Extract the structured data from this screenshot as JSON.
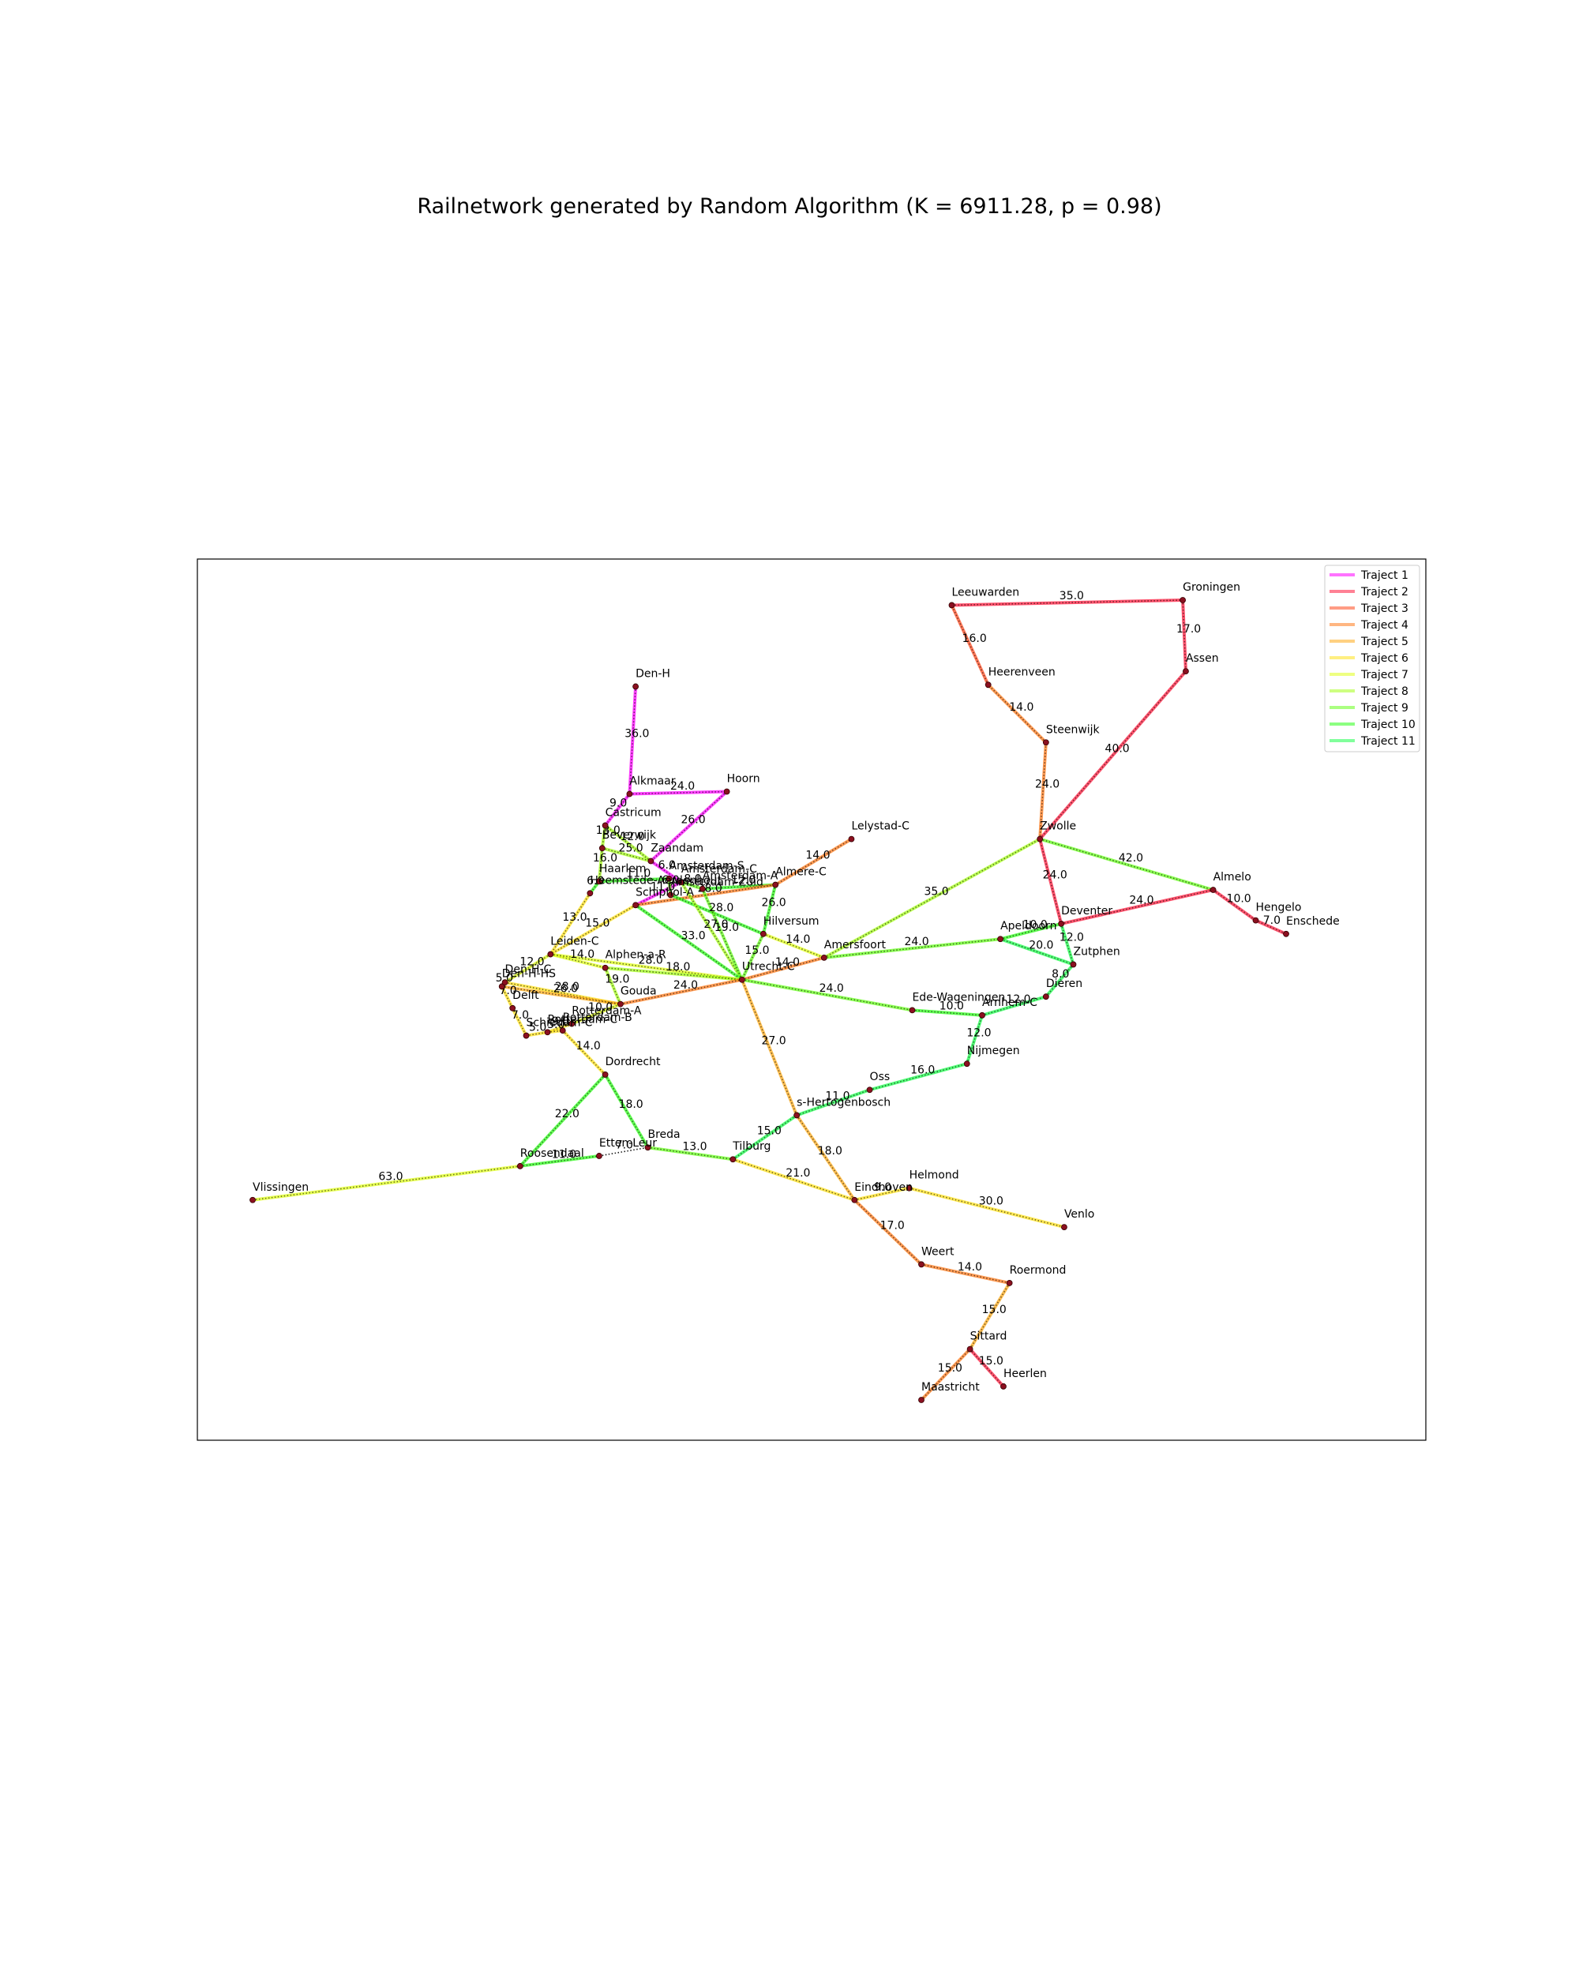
{
  "title": "Railnetwork generated by Random Algorithm (K = 6911.28, p = 0.98)",
  "legend": [
    {
      "label": "Traject 1",
      "color": "#ff00ff"
    },
    {
      "label": "Traject 2",
      "color": "#ff1a3c"
    },
    {
      "label": "Traject 3",
      "color": "#ff4a1f"
    },
    {
      "label": "Traject 4",
      "color": "#ff7a1a"
    },
    {
      "label": "Traject 5",
      "color": "#ffab1a"
    },
    {
      "label": "Traject 6",
      "color": "#ffe11a"
    },
    {
      "label": "Traject 7",
      "color": "#e0ff1a"
    },
    {
      "label": "Traject 8",
      "color": "#a6ff1a"
    },
    {
      "label": "Traject 9",
      "color": "#66ff1a"
    },
    {
      "label": "Traject 10",
      "color": "#2dff1a"
    },
    {
      "label": "Traject 11",
      "color": "#1aff4a"
    }
  ],
  "stations": [
    {
      "name": "Den-H",
      "lon": 4.76,
      "lat": 52.955
    },
    {
      "name": "Alkmaar",
      "lon": 4.74,
      "lat": 52.638
    },
    {
      "name": "Hoorn",
      "lon": 5.06,
      "lat": 52.645
    },
    {
      "name": "Castricum",
      "lon": 4.66,
      "lat": 52.545
    },
    {
      "name": "Beverwijk",
      "lon": 4.65,
      "lat": 52.478
    },
    {
      "name": "Zaandam",
      "lon": 4.81,
      "lat": 52.44
    },
    {
      "name": "Amsterdam-S",
      "lon": 4.87,
      "lat": 52.388
    },
    {
      "name": "Amsterdam-C",
      "lon": 4.91,
      "lat": 52.378
    },
    {
      "name": "Amsterdam-A",
      "lon": 4.98,
      "lat": 52.358
    },
    {
      "name": "Amsterdam-Zuid",
      "lon": 4.875,
      "lat": 52.34
    },
    {
      "name": "Haarlem",
      "lon": 4.64,
      "lat": 52.38
    },
    {
      "name": "Heemstede-Aerdenhout",
      "lon": 4.61,
      "lat": 52.345
    },
    {
      "name": "Schiphol-A",
      "lon": 4.76,
      "lat": 52.31
    },
    {
      "name": "Almere-C",
      "lon": 5.22,
      "lat": 52.37
    },
    {
      "name": "Lelystad-C",
      "lon": 5.47,
      "lat": 52.505
    },
    {
      "name": "Hilversum",
      "lon": 5.18,
      "lat": 52.225
    },
    {
      "name": "Amersfoort",
      "lon": 5.38,
      "lat": 52.155
    },
    {
      "name": "Utrecht-C",
      "lon": 5.11,
      "lat": 52.09
    },
    {
      "name": "Leiden-C",
      "lon": 4.48,
      "lat": 52.165
    },
    {
      "name": "Alphen-a-R",
      "lon": 4.66,
      "lat": 52.125
    },
    {
      "name": "Den-H-HS",
      "lon": 4.32,
      "lat": 52.07
    },
    {
      "name": "Den-H-C",
      "lon": 4.33,
      "lat": 52.082
    },
    {
      "name": "Gouda",
      "lon": 4.71,
      "lat": 52.018
    },
    {
      "name": "Delft",
      "lon": 4.355,
      "lat": 52.006
    },
    {
      "name": "Schiedam-C",
      "lon": 4.4,
      "lat": 51.925
    },
    {
      "name": "Rotterdam-C",
      "lon": 4.47,
      "lat": 51.935
    },
    {
      "name": "Rotterdam-A",
      "lon": 4.55,
      "lat": 51.96
    },
    {
      "name": "Rotterdam-B",
      "lon": 4.52,
      "lat": 51.94
    },
    {
      "name": "Dordrecht",
      "lon": 4.66,
      "lat": 51.81
    },
    {
      "name": "Roosendaal",
      "lon": 4.38,
      "lat": 51.54
    },
    {
      "name": "Etten-Leur",
      "lon": 4.64,
      "lat": 51.57
    },
    {
      "name": "Breda",
      "lon": 4.8,
      "lat": 51.595
    },
    {
      "name": "Tilburg",
      "lon": 5.08,
      "lat": 51.56
    },
    {
      "name": "Vlissingen",
      "lon": 3.5,
      "lat": 51.44
    },
    {
      "name": "s-Hertogenbosch",
      "lon": 5.29,
      "lat": 51.69
    },
    {
      "name": "Oss",
      "lon": 5.53,
      "lat": 51.765
    },
    {
      "name": "Nijmegen",
      "lon": 5.85,
      "lat": 51.842
    },
    {
      "name": "Ede-Wageningen",
      "lon": 5.67,
      "lat": 52.0
    },
    {
      "name": "Arnhem-C",
      "lon": 5.9,
      "lat": 51.985
    },
    {
      "name": "Dieren",
      "lon": 6.11,
      "lat": 52.04
    },
    {
      "name": "Zutphen",
      "lon": 6.2,
      "lat": 52.135
    },
    {
      "name": "Apeldoorn",
      "lon": 5.96,
      "lat": 52.21
    },
    {
      "name": "Deventer",
      "lon": 6.16,
      "lat": 52.255
    },
    {
      "name": "Zwolle",
      "lon": 6.09,
      "lat": 52.505
    },
    {
      "name": "Steenwijk",
      "lon": 6.11,
      "lat": 52.79
    },
    {
      "name": "Heerenveen",
      "lon": 5.92,
      "lat": 52.96
    },
    {
      "name": "Leeuwarden",
      "lon": 5.8,
      "lat": 53.195
    },
    {
      "name": "Groningen",
      "lon": 6.56,
      "lat": 53.21
    },
    {
      "name": "Assen",
      "lon": 6.57,
      "lat": 53.0
    },
    {
      "name": "Almelo",
      "lon": 6.66,
      "lat": 52.355
    },
    {
      "name": "Hengelo",
      "lon": 6.8,
      "lat": 52.265
    },
    {
      "name": "Enschede",
      "lon": 6.9,
      "lat": 52.225
    },
    {
      "name": "Eindhoven",
      "lon": 5.48,
      "lat": 51.44
    },
    {
      "name": "Helmond",
      "lon": 5.66,
      "lat": 51.475
    },
    {
      "name": "Venlo",
      "lon": 6.17,
      "lat": 51.36
    },
    {
      "name": "Weert",
      "lon": 5.7,
      "lat": 51.25
    },
    {
      "name": "Roermond",
      "lon": 5.99,
      "lat": 51.195
    },
    {
      "name": "Sittard",
      "lon": 5.86,
      "lat": 51.0
    },
    {
      "name": "Maastricht",
      "lon": 5.7,
      "lat": 50.85
    },
    {
      "name": "Heerlen",
      "lon": 5.97,
      "lat": 50.89
    }
  ],
  "connections": [
    {
      "a": "Den-H",
      "b": "Alkmaar",
      "dist": "36.0",
      "traject": 0
    },
    {
      "a": "Alkmaar",
      "b": "Hoorn",
      "dist": "24.0",
      "traject": 0
    },
    {
      "a": "Hoorn",
      "b": "Zaandam",
      "dist": "26.0",
      "traject": 0
    },
    {
      "a": "Alkmaar",
      "b": "Castricum",
      "dist": "9.0",
      "traject": 0
    },
    {
      "a": "Zaandam",
      "b": "Amsterdam-C",
      "dist": "6.0",
      "traject": 0
    },
    {
      "a": "Amsterdam-C",
      "b": "Schiphol-A",
      "dist": "11.0",
      "traject": 0
    },
    {
      "a": "Schiphol-A",
      "b": "Leiden-C",
      "dist": "15.0",
      "traject": 5
    },
    {
      "a": "Castricum",
      "b": "Beverwijk",
      "dist": "13.0",
      "traject": 7
    },
    {
      "a": "Beverwijk",
      "b": "Zaandam",
      "dist": "25.0",
      "traject": 7
    },
    {
      "a": "Castricum",
      "b": "Zaandam",
      "dist": "12.0",
      "traject": 7
    },
    {
      "a": "Beverwijk",
      "b": "Haarlem",
      "dist": "16.0",
      "traject": 7
    },
    {
      "a": "Haarlem",
      "b": "Amsterdam-S",
      "dist": "11.0",
      "traject": 9
    },
    {
      "a": "Haarlem",
      "b": "Heemstede-Aerdenhout",
      "dist": "6.0",
      "traject": 9
    },
    {
      "a": "Heemstede-Aerdenhout",
      "b": "Leiden-C",
      "dist": "13.0",
      "traject": 5
    },
    {
      "a": "Amsterdam-S",
      "b": "Amsterdam-Zuid",
      "dist": "6.0",
      "traject": 8
    },
    {
      "a": "Amsterdam-C",
      "b": "Amsterdam-A",
      "dist": "8.0",
      "traject": 8
    },
    {
      "a": "Amsterdam-A",
      "b": "Almere-C",
      "dist": "12.0",
      "traject": 9
    },
    {
      "a": "Schiphol-A",
      "b": "Almere-C",
      "dist": "28.0",
      "traject": 3
    },
    {
      "a": "Almere-C",
      "b": "Lelystad-C",
      "dist": "14.0",
      "traject": 3
    },
    {
      "a": "Almere-C",
      "b": "Hilversum",
      "dist": "26.0",
      "traject": 9
    },
    {
      "a": "Amsterdam-Zuid",
      "b": "Hilversum",
      "dist": "28.0",
      "traject": 9
    },
    {
      "a": "Amsterdam-C",
      "b": "Utrecht-C",
      "dist": "27.0",
      "traject": 7
    },
    {
      "a": "Amsterdam-A",
      "b": "Utrecht-C",
      "dist": "19.0",
      "traject": 8
    },
    {
      "a": "Schiphol-A",
      "b": "Utrecht-C",
      "dist": "33.0",
      "traject": 9
    },
    {
      "a": "Hilversum",
      "b": "Utrecht-C",
      "dist": "15.0",
      "traject": 8
    },
    {
      "a": "Hilversum",
      "b": "Amersfoort",
      "dist": "14.0",
      "traject": 6
    },
    {
      "a": "Utrecht-C",
      "b": "Amersfoort",
      "dist": "14.0",
      "traject": 3
    },
    {
      "a": "Leiden-C",
      "b": "Den-H-C",
      "dist": "12.0",
      "traject": 6
    },
    {
      "a": "Leiden-C",
      "b": "Alphen-a-R",
      "dist": "14.0",
      "traject": 6
    },
    {
      "a": "Leiden-C",
      "b": "Utrecht-C",
      "dist": "28.0",
      "traject": 6
    },
    {
      "a": "Alphen-a-R",
      "b": "Gouda",
      "dist": "19.0",
      "traject": 7
    },
    {
      "a": "Alphen-a-R",
      "b": "Utrecht-C",
      "dist": "18.0",
      "traject": 7
    },
    {
      "a": "Gouda",
      "b": "Utrecht-C",
      "dist": "24.0",
      "traject": 3
    },
    {
      "a": "Den-H-C",
      "b": "Gouda",
      "dist": "28.0",
      "traject": 5
    },
    {
      "a": "Den-H-HS",
      "b": "Gouda",
      "dist": "26.0",
      "traject": 4
    },
    {
      "a": "Den-H-C",
      "b": "Den-H-HS",
      "dist": "5.0",
      "traject": 5
    },
    {
      "a": "Den-H-HS",
      "b": "Delft",
      "dist": "7.0",
      "traject": 5
    },
    {
      "a": "Delft",
      "b": "Schiedam-C",
      "dist": "7.0",
      "traject": 5
    },
    {
      "a": "Schiedam-C",
      "b": "Rotterdam-C",
      "dist": "5.0",
      "traject": 5
    },
    {
      "a": "Rotterdam-C",
      "b": "Rotterdam-A",
      "dist": "9.0",
      "traject": 5
    },
    {
      "a": "Rotterdam-C",
      "b": "Rotterdam-B",
      "dist": "5.0",
      "traject": 5
    },
    {
      "a": "Rotterdam-A",
      "b": "Gouda",
      "dist": "10.0",
      "traject": 6
    },
    {
      "a": "Rotterdam-B",
      "b": "Dordrecht",
      "dist": "14.0",
      "traject": 5
    },
    {
      "a": "Dordrecht",
      "b": "Roosendaal",
      "dist": "22.0",
      "traject": 9
    },
    {
      "a": "Dordrecht",
      "b": "Breda",
      "dist": "18.0",
      "traject": 9
    },
    {
      "a": "Roosendaal",
      "b": "Etten-Leur",
      "dist": "11.0",
      "traject": 9
    },
    {
      "a": "Etten-Leur",
      "b": "Breda",
      "dist": "7.0",
      "traject": -1
    },
    {
      "a": "Roosendaal",
      "b": "Vlissingen",
      "dist": "63.0",
      "traject": 6
    },
    {
      "a": "Breda",
      "b": "Tilburg",
      "dist": "13.0",
      "traject": 8
    },
    {
      "a": "Tilburg",
      "b": "s-Hertogenbosch",
      "dist": "15.0",
      "traject": 10
    },
    {
      "a": "Tilburg",
      "b": "Eindhoven",
      "dist": "21.0",
      "traject": 5
    },
    {
      "a": "s-Hertogenbosch",
      "b": "Oss",
      "dist": "11.0",
      "traject": 10
    },
    {
      "a": "Oss",
      "b": "Nijmegen",
      "dist": "16.0",
      "traject": 10
    },
    {
      "a": "Nijmegen",
      "b": "Arnhem-C",
      "dist": "12.0",
      "traject": 10
    },
    {
      "a": "s-Hertogenbosch",
      "b": "Utrecht-C",
      "dist": "27.0",
      "traject": 4
    },
    {
      "a": "s-Hertogenbosch",
      "b": "Eindhoven",
      "dist": "18.0",
      "traject": 4
    },
    {
      "a": "Utrecht-C",
      "b": "Ede-Wageningen",
      "dist": "24.0",
      "traject": 8
    },
    {
      "a": "Ede-Wageningen",
      "b": "Arnhem-C",
      "dist": "10.0",
      "traject": 9
    },
    {
      "a": "Arnhem-C",
      "b": "Dieren",
      "dist": "12.0",
      "traject": 10
    },
    {
      "a": "Dieren",
      "b": "Zutphen",
      "dist": "8.0",
      "traject": 10
    },
    {
      "a": "Zutphen",
      "b": "Apeldoorn",
      "dist": "20.0",
      "traject": 10
    },
    {
      "a": "Zutphen",
      "b": "Deventer",
      "dist": "12.0",
      "traject": 10
    },
    {
      "a": "Apeldoorn",
      "b": "Deventer",
      "dist": "10.0",
      "traject": 9
    },
    {
      "a": "Amersfoort",
      "b": "Apeldoorn",
      "dist": "24.0",
      "traject": 8
    },
    {
      "a": "Amersfoort",
      "b": "Zwolle",
      "dist": "35.0",
      "traject": 7
    },
    {
      "a": "Zwolle",
      "b": "Deventer",
      "dist": "24.0",
      "traject": 1
    },
    {
      "a": "Zwolle",
      "b": "Almelo",
      "dist": "42.0",
      "traject": 8
    },
    {
      "a": "Deventer",
      "b": "Almelo",
      "dist": "24.0",
      "traject": 1
    },
    {
      "a": "Almelo",
      "b": "Hengelo",
      "dist": "10.0",
      "traject": 1
    },
    {
      "a": "Hengelo",
      "b": "Enschede",
      "dist": "7.0",
      "traject": 1
    },
    {
      "a": "Zwolle",
      "b": "Steenwijk",
      "dist": "24.0",
      "traject": 3
    },
    {
      "a": "Steenwijk",
      "b": "Heerenveen",
      "dist": "14.0",
      "traject": 3
    },
    {
      "a": "Heerenveen",
      "b": "Leeuwarden",
      "dist": "16.0",
      "traject": 2
    },
    {
      "a": "Leeuwarden",
      "b": "Groningen",
      "dist": "35.0",
      "traject": 1
    },
    {
      "a": "Groningen",
      "b": "Assen",
      "dist": "17.0",
      "traject": 1
    },
    {
      "a": "Assen",
      "b": "Zwolle",
      "dist": "40.0",
      "traject": 1
    },
    {
      "a": "Eindhoven",
      "b": "Helmond",
      "dist": "9.0",
      "traject": 5
    },
    {
      "a": "Helmond",
      "b": "Venlo",
      "dist": "30.0",
      "traject": 5
    },
    {
      "a": "Eindhoven",
      "b": "Weert",
      "dist": "17.0",
      "traject": 3
    },
    {
      "a": "Weert",
      "b": "Roermond",
      "dist": "14.0",
      "traject": 3
    },
    {
      "a": "Roermond",
      "b": "Sittard",
      "dist": "15.0",
      "traject": 4
    },
    {
      "a": "Sittard",
      "b": "Maastricht",
      "dist": "15.0",
      "traject": 3
    },
    {
      "a": "Sittard",
      "b": "Heerlen",
      "dist": "15.0",
      "traject": 1
    }
  ]
}
